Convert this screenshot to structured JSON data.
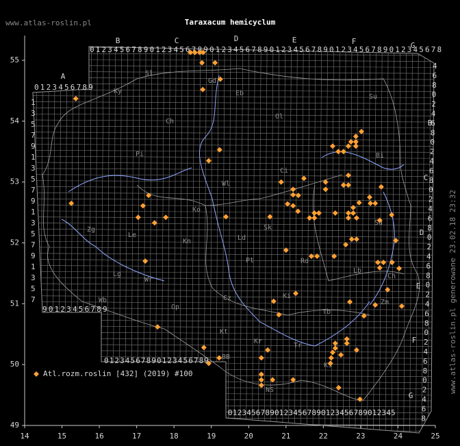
{
  "chart_data": {
    "type": "scatter",
    "title": "Taraxacum hemicyclum",
    "source_label": "www.atlas-roslin.pl",
    "side_note": "www.atlas-roslin.pl generowane 23.02.18 23:32",
    "xlim": [
      14,
      25
    ],
    "ylim": [
      49,
      55.4
    ],
    "xticks": [
      14,
      15,
      16,
      17,
      18,
      19,
      20,
      21,
      22,
      23,
      24,
      25
    ],
    "yticks": [
      49,
      50,
      51,
      52,
      53,
      54,
      55
    ],
    "series": [
      {
        "name": "Atl.rozm.roslin [432] (2019) #100",
        "color": "#ffa033",
        "x": [
          15.37,
          15.25,
          17.32,
          17.17,
          17.04,
          17.48,
          17.78,
          17.23,
          17.56,
          18.44,
          18.56,
          18.69,
          18.78,
          18.75,
          19.1,
          19.24,
          18.77,
          19.22,
          18.93,
          19.39,
          18.8,
          18.93,
          19.21,
          20.87,
          20.57,
          21.0,
          21.19,
          21.19,
          21.33,
          21.04,
          21.19,
          21.32,
          21.48,
          21.63,
          21.76,
          21.88,
          21.76,
          22.06,
          22.06,
          22.32,
          21.68,
          21.83,
          22.29,
          22.25,
          22.4,
          22.54,
          22.67,
          22.74,
          22.87,
          22.87,
          23.02,
          22.87,
          22.67,
          22.54,
          22.67,
          22.67,
          22.8,
          22.96,
          22.8,
          22.67,
          22.89,
          23.24,
          23.39,
          23.26,
          23.55,
          23.83,
          23.51,
          22.6,
          22.76,
          22.89,
          23.94,
          23.46,
          23.61,
          23.51,
          23.84,
          24.03,
          23.72,
          23.39,
          24.1,
          22.71,
          23.09,
          20.67,
          21.26,
          20.81,
          20.51,
          20.34,
          20.34,
          20.34,
          20.34,
          20.64,
          21.19,
          22.32,
          22.32,
          22.25,
          22.21,
          22.19,
          22.47,
          22.63,
          22.63,
          22.89,
          22.41,
          22.98
        ],
        "y": [
          54.37,
          52.65,
          52.78,
          52.61,
          52.42,
          52.33,
          52.42,
          51.7,
          50.62,
          55.13,
          55.13,
          55.13,
          55.13,
          54.96,
          54.96,
          54.69,
          54.52,
          53.53,
          53.35,
          52.43,
          50.28,
          50.02,
          50.11,
          53.0,
          52.43,
          51.88,
          52.88,
          52.79,
          52.78,
          52.64,
          52.61,
          52.52,
          53.06,
          52.41,
          52.49,
          52.49,
          52.41,
          53.0,
          52.88,
          52.49,
          51.78,
          51.78,
          51.78,
          53.59,
          53.5,
          53.5,
          53.59,
          53.66,
          53.75,
          53.66,
          53.83,
          53.59,
          53.11,
          52.95,
          52.95,
          52.49,
          52.58,
          52.66,
          52.49,
          52.41,
          52.41,
          52.75,
          52.65,
          52.65,
          52.92,
          52.46,
          52.37,
          51.97,
          52.06,
          52.06,
          52.04,
          51.68,
          51.68,
          51.59,
          51.68,
          51.58,
          51.23,
          50.98,
          50.96,
          51.03,
          50.8,
          51.04,
          51.17,
          50.82,
          50.24,
          50.11,
          49.84,
          49.75,
          49.66,
          49.75,
          49.75,
          50.35,
          50.27,
          50.2,
          50.11,
          50.02,
          50.16,
          50.42,
          50.35,
          50.24,
          49.62,
          49.43
        ]
      }
    ],
    "grid_labels": [
      "A",
      "0123456789",
      "B",
      "C",
      "D",
      "E",
      "F",
      "G",
      "01234567890123456789012345678901234567890123456789012345678",
      "90123456789",
      "01234567890123456789",
      "012345678901234567890123456789012345",
      "B",
      "C",
      "D",
      "E",
      "F",
      "G",
      "46802468024680246802468024680246802468",
      "1357913579135791357"
    ],
    "region_labels": [
      "Sl",
      "Ky",
      "Gd",
      "Eb",
      "Ch",
      "Ol",
      "Su",
      "Bi",
      "Pi",
      "Ci",
      "Wl",
      "Ko",
      "Kn",
      "Ld",
      "Sk",
      "Pt",
      "Rd",
      "Sd",
      "Lb",
      "Ch",
      "Zm",
      "Zg",
      "Le",
      "Lg",
      "Wr",
      "Wb",
      "Op",
      "Cz",
      "Ki",
      "Tb",
      "Kt",
      "Tr",
      "BB",
      "Kr",
      "Ks",
      "NS"
    ]
  }
}
